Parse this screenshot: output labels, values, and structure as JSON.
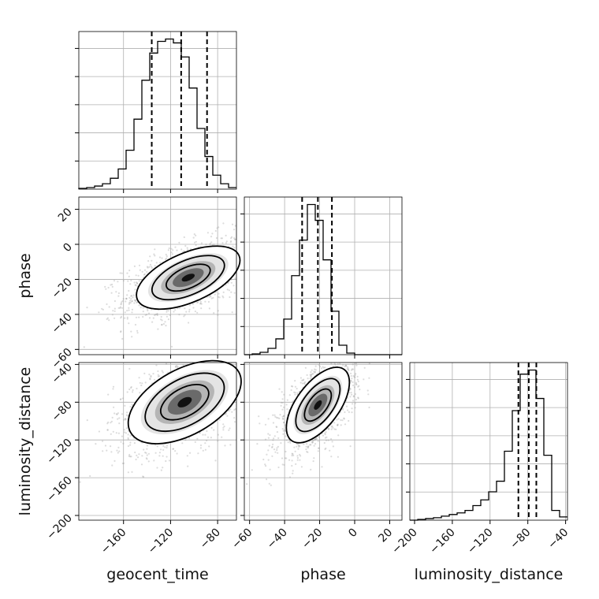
{
  "chart_data": {
    "type": "corner",
    "parameters": [
      "geocent_time",
      "phase",
      "luminosity_distance"
    ],
    "axis_labels": {
      "geocent_time": "geocent_time",
      "phase": "phase",
      "luminosity_distance": "luminosity_distance"
    },
    "ranges": {
      "geocent_time": [
        -198,
        -64
      ],
      "phase": [
        -63,
        27
      ],
      "luminosity_distance": [
        -205,
        -38
      ]
    },
    "ticks": {
      "geocent_time": [
        -160,
        -120,
        -80
      ],
      "phase_x": [
        -60,
        -40,
        -20,
        0,
        20
      ],
      "phase_y": [
        -60,
        -40,
        -20,
        0,
        20
      ],
      "luminosity_distance_x": [
        -200,
        -160,
        -120,
        -80,
        -40
      ],
      "luminosity_distance_y": [
        -200,
        -160,
        -120,
        -80,
        -40
      ]
    },
    "tick_labels": {
      "geocent_time": [
        "−160",
        "−120",
        "−80"
      ],
      "phase_x": [
        "−60",
        "−40",
        "−20",
        "0",
        "20"
      ],
      "phase_y": [
        "−60",
        "−40",
        "−20",
        "0",
        "20"
      ],
      "luminosity_distance_x": [
        "−200",
        "−160",
        "−120",
        "−80",
        "−40"
      ],
      "luminosity_distance_y": [
        "−200",
        "−160",
        "−120",
        "−80",
        "−40"
      ]
    },
    "histograms": {
      "geocent_time": {
        "bin_edges": [
          -198,
          -191.3,
          -184.6,
          -177.9,
          -171.2,
          -164.5,
          -157.8,
          -151.1,
          -144.4,
          -137.7,
          -131,
          -124.3,
          -117.6,
          -110.9,
          -104.2,
          -97.5,
          -90.8,
          -84.1,
          -77.4,
          -70.7,
          -64
        ],
        "counts": [
          1,
          2,
          4,
          7,
          14,
          26,
          50,
          90,
          140,
          175,
          190,
          193,
          188,
          170,
          130,
          78,
          42,
          18,
          7,
          2
        ],
        "quantiles": [
          -136,
          -111,
          -89
        ]
      },
      "phase": {
        "bin_edges": [
          -63,
          -58.5,
          -54,
          -49.5,
          -45,
          -40.5,
          -36,
          -31.5,
          -27,
          -22.5,
          -18,
          -13.5,
          -9,
          -4.5,
          0,
          4.5,
          9,
          13.5,
          18,
          22.5,
          27
        ],
        "counts": [
          0,
          1,
          3,
          8,
          20,
          45,
          100,
          145,
          190,
          170,
          120,
          55,
          12,
          2,
          0,
          0,
          0,
          0,
          0,
          0
        ],
        "quantiles": [
          -30,
          -21,
          -13
        ]
      },
      "luminosity_distance": {
        "bin_edges": [
          -205,
          -196.65,
          -188.3,
          -179.95,
          -171.6,
          -163.25,
          -154.9,
          -146.55,
          -138.2,
          -129.85,
          -121.5,
          -113.15,
          -104.8,
          -96.45,
          -88.1,
          -79.75,
          -71.4,
          -63.05,
          -54.7,
          -46.35,
          -38
        ],
        "counts": [
          0,
          1,
          2,
          3,
          5,
          7,
          9,
          12,
          18,
          25,
          35,
          48,
          85,
          135,
          180,
          185,
          150,
          80,
          12,
          4
        ],
        "quantiles": [
          -90,
          -79,
          -71
        ]
      }
    },
    "joint": {
      "phase_vs_geocent_time": {
        "mean": [
          -105,
          -19
        ],
        "std": [
          22,
          9
        ],
        "correlation": 0.55
      },
      "luminosity_distance_vs_geocent_time": {
        "mean": [
          -108,
          -80
        ],
        "std": [
          24,
          22
        ],
        "correlation": 0.5
      },
      "luminosity_distance_vs_phase": {
        "mean": [
          -21,
          -83
        ],
        "std": [
          9,
          20
        ],
        "correlation": 0.6
      }
    }
  }
}
